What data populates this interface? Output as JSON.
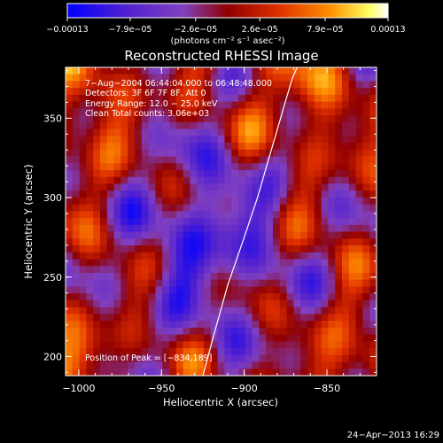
{
  "chart_data": {
    "type": "heatmap",
    "title": "Reconstructed RHESSI Image",
    "xlabel": "Heliocentric X (arcsec)",
    "ylabel": "Heliocentric Y (arcsec)",
    "xlim": [
      -1008,
      -820
    ],
    "ylim": [
      188,
      382
    ],
    "x_ticks": [
      -1000,
      -950,
      -900,
      -850
    ],
    "y_ticks": [
      200,
      250,
      300,
      350
    ],
    "x_tick_labels": [
      "−1000",
      "−950",
      "−900",
      "−850"
    ],
    "y_tick_labels": [
      "200",
      "250",
      "300",
      "350"
    ],
    "colorbar": {
      "min": -0.00013,
      "max": 0.00013,
      "ticks": [
        -0.00013,
        -7.9e-05,
        -2.6e-05,
        2.6e-05,
        7.9e-05,
        0.00013
      ],
      "tick_labels": [
        "−0.00013",
        "−7.9e−05",
        "−2.6e−05",
        "2.6e−05",
        "7.9e−05",
        "0.00013"
      ],
      "unit_label": "(photons cm⁻² s⁻¹ asec⁻²)"
    },
    "annotations": [
      "7−Aug−2004 06:44:04.000 to 06:48:48.000",
      "Detectors: 3F 6F 7F 8F, Att 0",
      "Energy Range: 12.0 − 25.0 keV",
      "Clean    Total counts: 3.06e+03",
      "Position of Peak = [−834,189]"
    ],
    "limb_curve": [
      [
        -925,
        188
      ],
      [
        -918,
        215
      ],
      [
        -910,
        245
      ],
      [
        -900,
        275
      ],
      [
        -892,
        300
      ],
      [
        -885,
        325
      ],
      [
        -878,
        350
      ],
      [
        -871,
        375
      ],
      [
        -868,
        382
      ]
    ],
    "peak_position": [
      -834,
      189
    ],
    "footer_timestamp": "24−Apr−2013 16:29",
    "colors": {
      "background": "#000000",
      "text": "#ffffff",
      "colormap": [
        "#0000ff",
        "#4020c0",
        "#8040c0",
        "#a00000",
        "#e03000",
        "#ff8000",
        "#ffff80",
        "#ffffff"
      ]
    }
  }
}
